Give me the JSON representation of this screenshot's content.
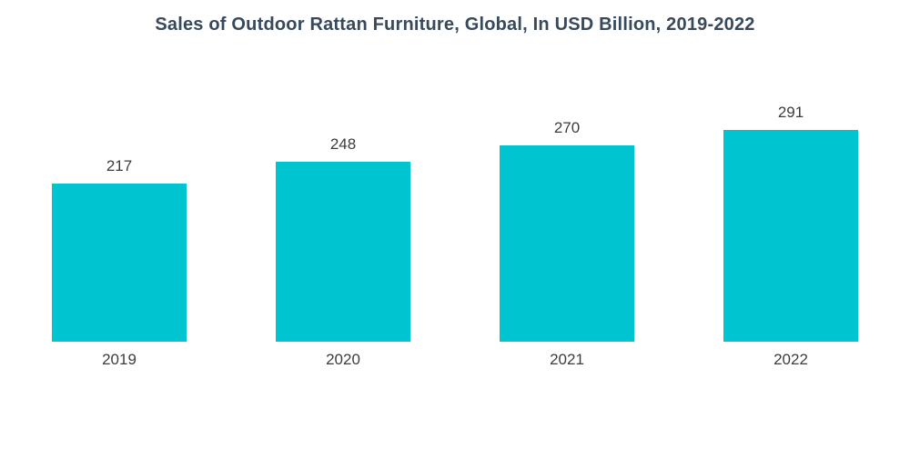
{
  "title": "Sales of Outdoor Rattan Furniture, Global, In USD Billion, 2019-2022",
  "colors": {
    "bar": "#00c5d0",
    "title": "#37495b",
    "label": "#3c3c3c",
    "background": "#ffffff"
  },
  "chart_data": {
    "type": "bar",
    "title": "Sales of Outdoor Rattan Furniture, Global, In USD Billion, 2019-2022",
    "categories": [
      "2019",
      "2020",
      "2021",
      "2022"
    ],
    "values": [
      217,
      248,
      270,
      291
    ],
    "xlabel": "",
    "ylabel": "",
    "ylim": [
      0,
      300
    ],
    "grid": false,
    "legend": false,
    "data_labels": true,
    "axes_visible": false
  }
}
